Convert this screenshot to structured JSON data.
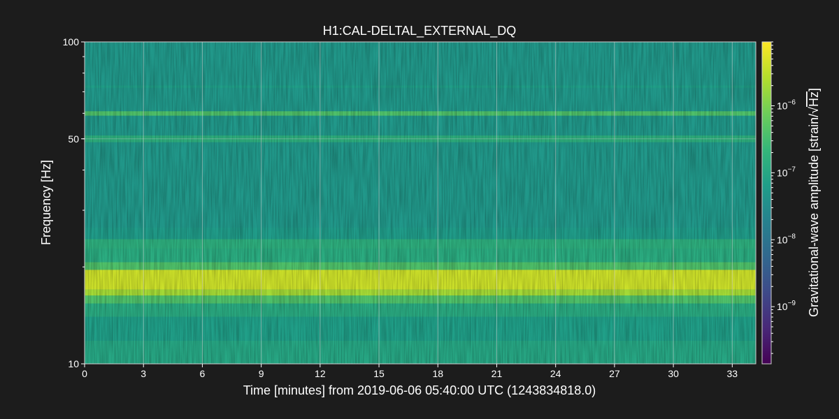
{
  "chart_data": {
    "type": "heatmap",
    "title": "H1:CAL-DELTAL_EXTERNAL_DQ",
    "xlabel": "Time [minutes] from 2019-06-06 05:40:00 UTC (1243834818.0)",
    "ylabel": "Frequency [Hz]",
    "colorbar_label": "Gravitational-wave amplitude [strain/√Hz]",
    "colorbar_label_prefix": "Gravitational-wave amplitude [strain/",
    "colorbar_label_radical": "√",
    "colorbar_label_radicand": "Hz",
    "colorbar_label_suffix": "]",
    "xlim": [
      0,
      34.2
    ],
    "ylim": [
      10,
      100
    ],
    "y_scale": "log",
    "color_scale": "log",
    "clim": [
      1.4e-10,
      9e-06
    ],
    "colormap": "viridis",
    "x_ticks": [
      {
        "value": 0,
        "label": "0"
      },
      {
        "value": 3,
        "label": "3"
      },
      {
        "value": 6,
        "label": "6"
      },
      {
        "value": 9,
        "label": "9"
      },
      {
        "value": 12,
        "label": "12"
      },
      {
        "value": 15,
        "label": "15"
      },
      {
        "value": 18,
        "label": "18"
      },
      {
        "value": 21,
        "label": "21"
      },
      {
        "value": 24,
        "label": "24"
      },
      {
        "value": 27,
        "label": "27"
      },
      {
        "value": 30,
        "label": "30"
      },
      {
        "value": 33,
        "label": "33"
      }
    ],
    "y_ticks": [
      {
        "value": 10,
        "label": "10"
      },
      {
        "value": 50,
        "label": "50"
      },
      {
        "value": 100,
        "label": "100"
      }
    ],
    "colorbar_ticks": [
      {
        "value": 1e-09,
        "label_base": "10",
        "label_exp": "−9"
      },
      {
        "value": 1e-08,
        "label_base": "10",
        "label_exp": "−8"
      },
      {
        "value": 1e-07,
        "label_base": "10",
        "label_exp": "−7"
      },
      {
        "value": 1e-06,
        "label_base": "10",
        "label_exp": "−6"
      }
    ],
    "grid": true,
    "background_amplitude": 5e-08,
    "frequency_bands": [
      {
        "f_low": 10.0,
        "f_high": 11.8,
        "amplitude": 1e-07
      },
      {
        "f_low": 11.8,
        "f_high": 14.0,
        "amplitude": 7e-08
      },
      {
        "f_low": 14.0,
        "f_high": 15.4,
        "amplitude": 1.2e-07
      },
      {
        "f_low": 15.4,
        "f_high": 16.3,
        "amplitude": 4e-07
      },
      {
        "f_low": 16.3,
        "f_high": 17.0,
        "amplitude": 2e-06
      },
      {
        "f_low": 17.0,
        "f_high": 19.6,
        "amplitude": 4e-06
      },
      {
        "f_low": 19.6,
        "f_high": 20.7,
        "amplitude": 4e-07
      },
      {
        "f_low": 20.7,
        "f_high": 22.8,
        "amplitude": 1.3e-07
      },
      {
        "f_low": 22.8,
        "f_high": 24.4,
        "amplitude": 1.5e-07
      },
      {
        "f_low": 24.4,
        "f_high": 26.5,
        "amplitude": 6e-08
      },
      {
        "f_low": 48.8,
        "f_high": 51.2,
        "amplitude": 1.5e-07
      },
      {
        "f_low": 59.0,
        "f_high": 60.9,
        "amplitude": 4e-07
      },
      {
        "f_low": 72.0,
        "f_high": 73.2,
        "amplitude": 7e-08
      }
    ]
  }
}
